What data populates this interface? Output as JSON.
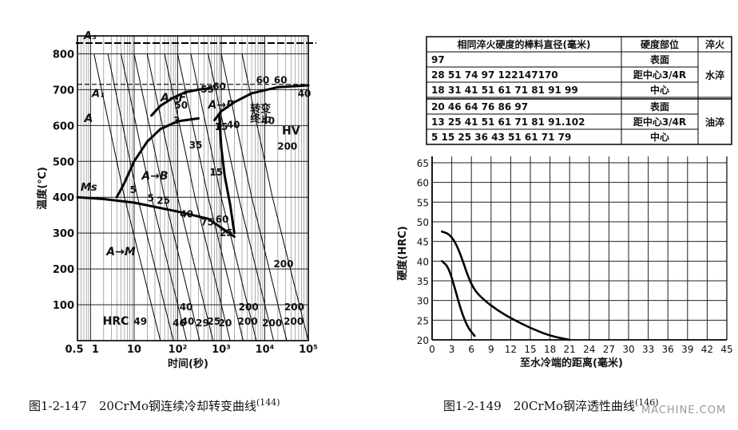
{
  "chart_data": [
    {
      "type": "line",
      "ylabel": "温度(℃)",
      "xlabel": "时间(秒)",
      "x_scale": "log",
      "xlim": [
        0.5,
        100000
      ],
      "ylim": [
        0,
        850
      ],
      "x_ticks": [
        {
          "value": 0.5,
          "label": "0.5"
        },
        {
          "value": 1,
          "label": "1"
        },
        {
          "value": 10,
          "label": "10"
        },
        {
          "value": 100,
          "label": "10²"
        },
        {
          "value": 1000,
          "label": "10³"
        },
        {
          "value": 10000,
          "label": "10⁴"
        },
        {
          "value": 100000,
          "label": "10⁵"
        }
      ],
      "y_ticks": [
        100,
        200,
        300,
        400,
        500,
        600,
        700,
        800
      ],
      "critical_lines": [
        {
          "name": "A3",
          "label": "A₃",
          "y": 830
        },
        {
          "name": "A1",
          "label": "A₁",
          "y": 715
        },
        {
          "name": "Ms",
          "label": "Ms",
          "y": 400
        }
      ],
      "regions": [
        {
          "label": "A",
          "x": 0.9,
          "y": 610
        },
        {
          "label": "A→F",
          "x": 80,
          "y": 668
        },
        {
          "label": "A→P",
          "x": 1000,
          "y": 648
        },
        {
          "label": "A→B",
          "x": 30,
          "y": 450
        },
        {
          "label": "A→M",
          "x": 5,
          "y": 238
        },
        {
          "label": "转变",
          "x": 8000,
          "y": 638
        },
        {
          "label": "终止",
          "x": 8000,
          "y": 610
        }
      ],
      "series": [
        {
          "role": "ferrite-start",
          "x": [
            25,
            40,
            80,
            150,
            300,
            600
          ],
          "y": [
            628,
            655,
            678,
            693,
            700,
            705
          ]
        },
        {
          "role": "pearlite",
          "x": [
            700,
            1000,
            2000,
            5000,
            20000,
            100000
          ],
          "y": [
            615,
            640,
            665,
            690,
            707,
            712
          ]
        },
        {
          "role": "bainite-start",
          "x": [
            4,
            6,
            10,
            20,
            40,
            100,
            300
          ],
          "y": [
            400,
            440,
            500,
            555,
            590,
            612,
            620
          ]
        },
        {
          "role": "transformation-finish",
          "x": [
            900,
            1000,
            1200,
            1600,
            2000
          ],
          "y": [
            630,
            540,
            460,
            380,
            300
          ]
        },
        {
          "role": "ms",
          "x": [
            0.5,
            2,
            10,
            100,
            500,
            1000,
            2000
          ],
          "y": [
            400,
            395,
            385,
            360,
            340,
            315,
            290
          ]
        }
      ],
      "cooling_curves": [
        {
          "x": [
            1.2,
            6,
            40
          ],
          "y": [
            800,
            400,
            0
          ]
        },
        {
          "x": [
            2.5,
            12,
            80
          ],
          "y": [
            800,
            400,
            0
          ]
        },
        {
          "x": [
            5,
            25,
            160
          ],
          "y": [
            800,
            400,
            0
          ]
        },
        {
          "x": [
            10,
            50,
            320
          ],
          "y": [
            800,
            400,
            0
          ]
        },
        {
          "x": [
            20,
            100,
            650
          ],
          "y": [
            800,
            400,
            0
          ]
        },
        {
          "x": [
            50,
            250,
            1600
          ],
          "y": [
            800,
            400,
            0
          ]
        },
        {
          "x": [
            100,
            500,
            3200
          ],
          "y": [
            800,
            400,
            0
          ]
        },
        {
          "x": [
            200,
            1000,
            6400
          ],
          "y": [
            800,
            400,
            0
          ]
        },
        {
          "x": [
            500,
            2500,
            16000
          ],
          "y": [
            800,
            400,
            0
          ]
        },
        {
          "x": [
            1000,
            5000,
            32000
          ],
          "y": [
            800,
            400,
            0
          ]
        },
        {
          "x": [
            3000,
            15000,
            100000
          ],
          "y": [
            800,
            400,
            0
          ]
        }
      ],
      "phase_labels": [
        {
          "text": "3",
          "x": 95,
          "y": 605
        },
        {
          "text": "50",
          "x": 120,
          "y": 647
        },
        {
          "text": "55",
          "x": 480,
          "y": 692
        },
        {
          "text": "60",
          "x": 900,
          "y": 700
        },
        {
          "text": "60",
          "x": 9000,
          "y": 718
        },
        {
          "text": "60",
          "x": 23000,
          "y": 718
        },
        {
          "text": "40",
          "x": 81000,
          "y": 680
        },
        {
          "text": "35",
          "x": 260,
          "y": 536
        },
        {
          "text": "15",
          "x": 1000,
          "y": 587
        },
        {
          "text": "40",
          "x": 1900,
          "y": 593
        },
        {
          "text": "40",
          "x": 12000,
          "y": 604
        },
        {
          "text": "15",
          "x": 770,
          "y": 461
        },
        {
          "text": "5",
          "x": 9.5,
          "y": 412
        },
        {
          "text": "5",
          "x": 24,
          "y": 388
        },
        {
          "text": "25",
          "x": 47,
          "y": 382
        },
        {
          "text": "40",
          "x": 160,
          "y": 344
        },
        {
          "text": "75",
          "x": 480,
          "y": 322
        },
        {
          "text": "60",
          "x": 1050,
          "y": 329
        },
        {
          "text": "25",
          "x": 1300,
          "y": 292
        },
        {
          "text": "200",
          "x": 27000,
          "y": 205
        },
        {
          "text": "200",
          "x": 33000,
          "y": 533
        }
      ],
      "hrc_row": {
        "label": "HRC",
        "values": [
          "49",
          "46",
          "40",
          "29",
          "25",
          "20",
          "200",
          "200",
          "200"
        ]
      },
      "hv_label": "HV"
    },
    {
      "type": "line",
      "ylabel": "硬度(HRC)",
      "xlabel": "至水冷端的距离(毫米)",
      "xlim": [
        0,
        45
      ],
      "ylim": [
        20,
        65
      ],
      "x_ticks": [
        0,
        3,
        6,
        9,
        12,
        15,
        18,
        21,
        24,
        27,
        30,
        33,
        36,
        39,
        42,
        45
      ],
      "y_ticks": [
        20,
        25,
        30,
        35,
        40,
        45,
        50,
        55,
        60,
        65
      ],
      "series": [
        {
          "role": "upper",
          "x": [
            1.5,
            2.5,
            3.5,
            4.5,
            5.5,
            6.5,
            8,
            10,
            12,
            15,
            18,
            21
          ],
          "y": [
            47.5,
            47,
            45,
            41,
            36,
            32.5,
            30,
            27.5,
            25.5,
            23,
            21,
            20
          ]
        },
        {
          "role": "lower",
          "x": [
            1.5,
            2.5,
            3.5,
            4.5,
            5.5,
            6.5
          ],
          "y": [
            40,
            38.5,
            33,
            27,
            23,
            21
          ]
        }
      ],
      "table": {
        "headers": [
          "相同淬火硬度的棒料直径(毫米)",
          "硬度部位",
          "淬火"
        ],
        "groups": [
          {
            "medium": "水淬",
            "rows": [
              {
                "diameters": "97",
                "position": "表面"
              },
              {
                "diameters": "28  51  74  97 122147170",
                "position": "距中心3/4R"
              },
              {
                "diameters": "18  31  41  51  61  71  81  91  99",
                "position": "中心"
              }
            ]
          },
          {
            "medium": "油淬",
            "rows": [
              {
                "diameters": "20  46  64  76  86  97",
                "position": "表面"
              },
              {
                "diameters": "13  25  41  51  61  71  81  91.102",
                "position": "距中心3/4R"
              },
              {
                "diameters": "5  15  25  36  43  51  61  71  79",
                "position": "中心"
              }
            ]
          }
        ]
      }
    }
  ],
  "captions": {
    "left": {
      "text": "图1-2-147　20CrMo钢连续冷却转变曲线",
      "ref": "(144)"
    },
    "right": {
      "text": "图1-2-149　20CrMo钢淬透性曲线",
      "ref": "(146)"
    }
  },
  "watermark": "MACHINE.COM"
}
